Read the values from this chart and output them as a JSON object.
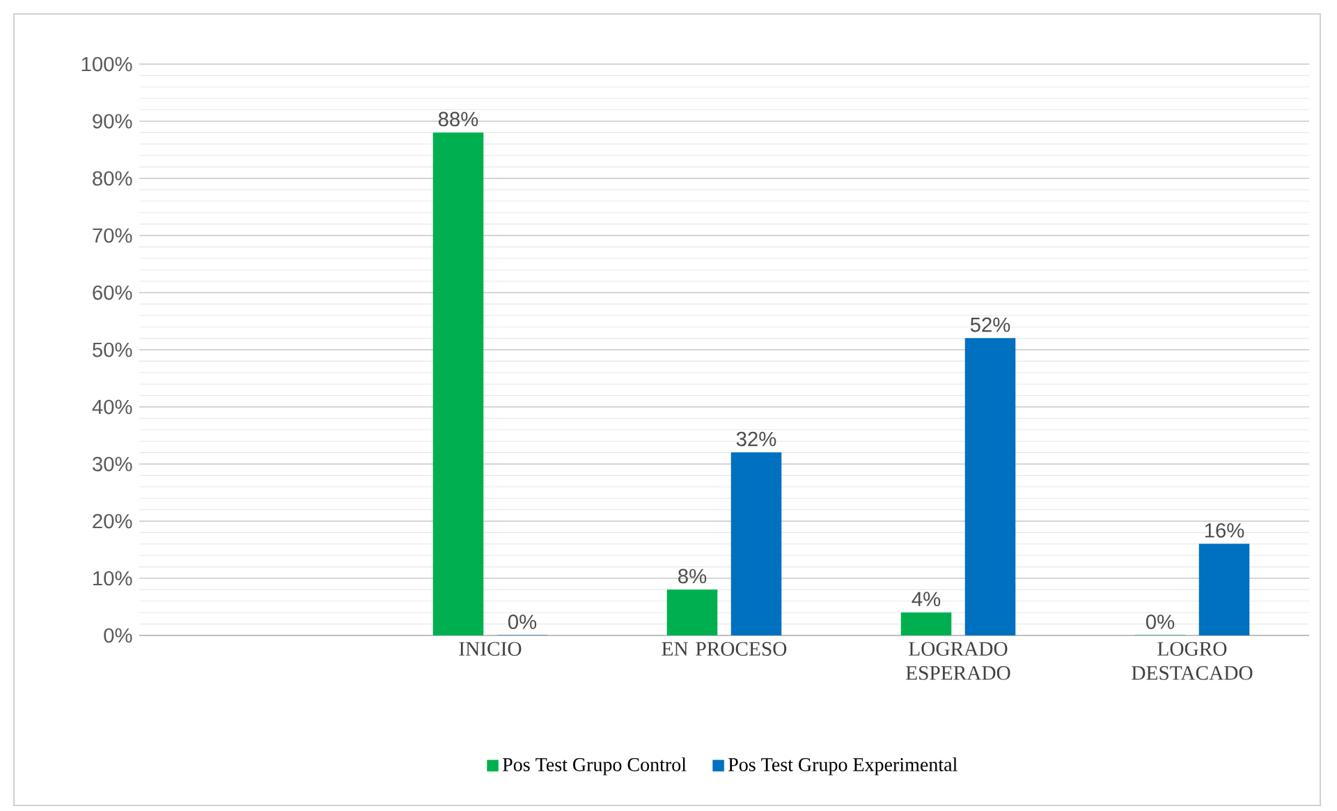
{
  "chart_data": {
    "type": "bar",
    "categories": [
      null,
      "INICIO",
      "EN PROCESO",
      "LOGRADO ESPERADO",
      "LOGRO DESTACADO"
    ],
    "series": [
      {
        "name": "Pos Test Grupo Control",
        "color": "#00b050",
        "values": [
          null,
          88,
          8,
          4,
          0
        ],
        "value_labels": [
          null,
          "88%",
          "8%",
          "4%",
          "0%"
        ]
      },
      {
        "name": "Pos Test Grupo Experimental",
        "color": "#0070c0",
        "values": [
          null,
          0,
          32,
          52,
          16
        ],
        "value_labels": [
          null,
          "0%",
          "32%",
          "52%",
          "16%"
        ]
      }
    ],
    "ylim": [
      0,
      100
    ],
    "yticks": [
      {
        "value": 0,
        "label": "0%"
      },
      {
        "value": 10,
        "label": "10%"
      },
      {
        "value": 20,
        "label": "20%"
      },
      {
        "value": 30,
        "label": "30%"
      },
      {
        "value": 40,
        "label": "40%"
      },
      {
        "value": 50,
        "label": "50%"
      },
      {
        "value": 60,
        "label": "60%"
      },
      {
        "value": 70,
        "label": "70%"
      },
      {
        "value": 80,
        "label": "80%"
      },
      {
        "value": 90,
        "label": "90%"
      },
      {
        "value": 100,
        "label": "100%"
      }
    ],
    "grid": "y",
    "legend": "bottom"
  }
}
